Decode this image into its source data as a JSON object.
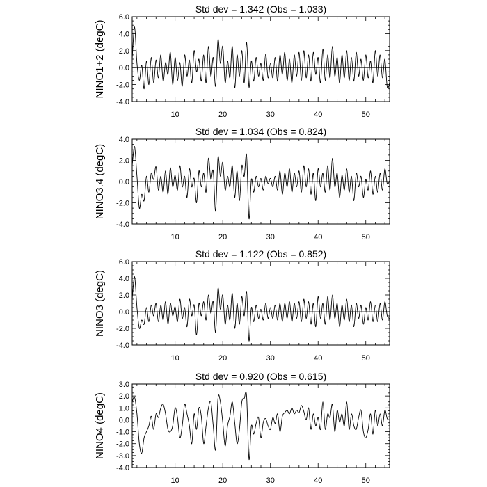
{
  "chart_data": [
    {
      "type": "line",
      "title": "Std dev = 1.342 (Obs = 1.033)",
      "ylabel": "NINO1+2 (degC)",
      "xlabel": "",
      "xlim": [
        1,
        55
      ],
      "ylim": [
        -4,
        6
      ],
      "yticks": [
        "-4.0",
        "-2.0",
        "0.0",
        "2.0",
        "4.0",
        "6.0"
      ],
      "xticks": [
        "10",
        "20",
        "30",
        "40",
        "50"
      ],
      "zero_line": true,
      "series": [
        {
          "x": [
            1.0,
            1.5,
            2.0,
            2.5,
            3.0,
            3.5,
            4.0,
            4.5,
            5.0,
            5.5,
            6.0,
            6.5,
            7.0,
            7.5,
            8.0,
            8.5,
            9.0,
            9.5,
            10.0,
            10.5,
            11.0,
            11.5,
            12.0,
            12.5,
            13.0,
            13.5,
            14.0,
            14.5,
            15.0,
            15.5,
            16.0,
            16.5,
            17.0,
            17.5,
            18.0,
            18.5,
            19.0,
            19.5,
            20.0,
            20.5,
            21.0,
            21.5,
            22.0,
            22.5,
            23.0,
            23.5,
            24.0,
            24.5,
            25.0,
            25.5,
            26.0,
            26.5,
            27.0,
            27.5,
            28.0,
            28.5,
            29.0,
            29.5,
            30.0,
            30.5,
            31.0,
            31.5,
            32.0,
            32.5,
            33.0,
            33.5,
            34.0,
            34.5,
            35.0,
            35.5,
            36.0,
            36.5,
            37.0,
            37.5,
            38.0,
            38.5,
            39.0,
            39.5,
            40.0,
            40.5,
            41.0,
            41.5,
            42.0,
            42.5,
            43.0,
            43.5,
            44.0,
            44.5,
            45.0,
            45.5,
            46.0,
            46.5,
            47.0,
            47.5,
            48.0,
            48.5,
            49.0,
            49.5,
            50.0,
            50.5,
            51.0,
            51.5,
            52.0,
            52.5,
            53.0,
            53.5,
            54.0,
            54.5,
            55.0
          ],
          "y": [
            1.0,
            4.8,
            0.5,
            -1.5,
            0.3,
            -2.5,
            0.8,
            -2.0,
            1.2,
            -1.8,
            0.9,
            -1.2,
            1.5,
            -1.6,
            0.6,
            -0.8,
            1.8,
            -2.0,
            1.2,
            -1.5,
            0.6,
            -2.2,
            1.5,
            -1.0,
            0.9,
            -1.8,
            2.0,
            -0.5,
            1.0,
            -1.6,
            1.5,
            -1.8,
            2.5,
            -1.0,
            1.2,
            -2.2,
            3.3,
            0.5,
            2.5,
            -1.8,
            0.8,
            -1.2,
            2.5,
            -2.4,
            1.5,
            -1.0,
            2.0,
            -1.8,
            3.0,
            -2.3,
            0.8,
            -1.6,
            1.2,
            -1.0,
            0.5,
            -1.5,
            1.6,
            -1.2,
            0.5,
            -1.2,
            1.2,
            -1.6,
            1.5,
            -0.8,
            1.8,
            -1.5,
            1.0,
            -1.8,
            1.5,
            -1.0,
            1.8,
            -1.5,
            2.0,
            -1.2,
            1.5,
            -1.6,
            1.8,
            -0.8,
            1.2,
            -1.8,
            2.2,
            -1.5,
            1.5,
            -1.2,
            2.5,
            -1.0,
            1.2,
            -1.8,
            1.5,
            -1.2,
            2.0,
            -1.5,
            1.2,
            -1.6,
            1.8,
            -1.0,
            1.0,
            -1.5,
            1.5,
            -1.2,
            0.8,
            -1.8,
            2.0,
            -1.0,
            1.5,
            -1.2,
            1.0,
            -2.3,
            -1.8
          ]
        }
      ]
    },
    {
      "type": "line",
      "title": "Std dev = 1.034 (Obs = 0.824)",
      "ylabel": "NINO3.4 (degC)",
      "xlabel": "",
      "xlim": [
        1,
        55
      ],
      "ylim": [
        -4,
        4
      ],
      "yticks": [
        "-4.0",
        "-2.0",
        "0.0",
        "2.0",
        "4.0"
      ],
      "xticks": [
        "10",
        "20",
        "30",
        "40",
        "50"
      ],
      "zero_line": true,
      "series": [
        {
          "x": [
            1.0,
            1.5,
            2.0,
            2.5,
            3.0,
            3.5,
            4.0,
            4.5,
            5.0,
            5.5,
            6.0,
            6.5,
            7.0,
            7.5,
            8.0,
            8.5,
            9.0,
            9.5,
            10.0,
            10.5,
            11.0,
            11.5,
            12.0,
            12.5,
            13.0,
            13.5,
            14.0,
            14.5,
            15.0,
            15.5,
            16.0,
            16.5,
            17.0,
            17.5,
            18.0,
            18.5,
            19.0,
            19.5,
            20.0,
            20.5,
            21.0,
            21.5,
            22.0,
            22.5,
            23.0,
            23.5,
            24.0,
            24.5,
            25.0,
            25.5,
            26.0,
            26.5,
            27.0,
            27.5,
            28.0,
            28.5,
            29.0,
            29.5,
            30.0,
            30.5,
            31.0,
            31.5,
            32.0,
            32.5,
            33.0,
            33.5,
            34.0,
            34.5,
            35.0,
            35.5,
            36.0,
            36.5,
            37.0,
            37.5,
            38.0,
            38.5,
            39.0,
            39.5,
            40.0,
            40.5,
            41.0,
            41.5,
            42.0,
            42.5,
            43.0,
            43.5,
            44.0,
            44.5,
            45.0,
            45.5,
            46.0,
            46.5,
            47.0,
            47.5,
            48.0,
            48.5,
            49.0,
            49.5,
            50.0,
            50.5,
            51.0,
            51.5,
            52.0,
            52.5,
            53.0,
            53.5,
            54.0,
            54.5,
            55.0
          ],
          "y": [
            1.5,
            3.3,
            0.5,
            -2.5,
            -1.2,
            -1.8,
            0.5,
            -1.0,
            0.8,
            0.2,
            1.4,
            -0.8,
            0.5,
            -1.0,
            1.0,
            -1.2,
            1.3,
            -0.5,
            0.6,
            -0.8,
            1.5,
            -0.5,
            0.5,
            -1.5,
            1.2,
            -0.5,
            0.3,
            -2.0,
            1.0,
            -0.5,
            0.8,
            -1.0,
            2.2,
            0.2,
            1.0,
            -2.8,
            2.3,
            0.5,
            1.8,
            -0.8,
            0.5,
            -0.5,
            1.5,
            -1.5,
            1.0,
            -1.8,
            1.5,
            0.5,
            2.5,
            -3.5,
            0.2,
            -1.0,
            0.5,
            -0.5,
            0.3,
            -0.8,
            0.5,
            -0.2,
            0.3,
            -0.5,
            0.5,
            -0.8,
            1.0,
            -1.2,
            0.8,
            -0.5,
            1.2,
            -1.0,
            0.8,
            -0.5,
            1.0,
            -1.0,
            1.5,
            -0.5,
            1.2,
            -1.2,
            0.8,
            -1.8,
            1.2,
            -0.5,
            0.8,
            -1.0,
            1.5,
            -0.8,
            2.2,
            -0.5,
            0.8,
            -1.5,
            0.6,
            -0.8,
            1.2,
            -1.0,
            0.5,
            -1.8,
            0.8,
            -0.5,
            0.5,
            -1.5,
            0.2,
            -0.8,
            1.0,
            -1.2,
            0.5,
            -1.0,
            0.8,
            -0.8,
            1.2,
            -0.2,
            0.1
          ]
        }
      ]
    },
    {
      "type": "line",
      "title": "Std dev = 1.122 (Obs = 0.852)",
      "ylabel": "NINO3 (degC)",
      "xlabel": "",
      "xlim": [
        1,
        55
      ],
      "ylim": [
        -4,
        6
      ],
      "yticks": [
        "-4.0",
        "-2.0",
        "0.0",
        "2.0",
        "4.0",
        "6.0"
      ],
      "xticks": [
        "10",
        "20",
        "30",
        "40",
        "50"
      ],
      "zero_line": true,
      "series": [
        {
          "x": [
            1.0,
            1.5,
            2.0,
            2.5,
            3.0,
            3.5,
            4.0,
            4.5,
            5.0,
            5.5,
            6.0,
            6.5,
            7.0,
            7.5,
            8.0,
            8.5,
            9.0,
            9.5,
            10.0,
            10.5,
            11.0,
            11.5,
            12.0,
            12.5,
            13.0,
            13.5,
            14.0,
            14.5,
            15.0,
            15.5,
            16.0,
            16.5,
            17.0,
            17.5,
            18.0,
            18.5,
            19.0,
            19.5,
            20.0,
            20.5,
            21.0,
            21.5,
            22.0,
            22.5,
            23.0,
            23.5,
            24.0,
            24.5,
            25.0,
            25.5,
            26.0,
            26.5,
            27.0,
            27.5,
            28.0,
            28.5,
            29.0,
            29.5,
            30.0,
            30.5,
            31.0,
            31.5,
            32.0,
            32.5,
            33.0,
            33.5,
            34.0,
            34.5,
            35.0,
            35.5,
            36.0,
            36.5,
            37.0,
            37.5,
            38.0,
            38.5,
            39.0,
            39.5,
            40.0,
            40.5,
            41.0,
            41.5,
            42.0,
            42.5,
            43.0,
            43.5,
            44.0,
            44.5,
            45.0,
            45.5,
            46.0,
            46.5,
            47.0,
            47.5,
            48.0,
            48.5,
            49.0,
            49.5,
            50.0,
            50.5,
            51.0,
            51.5,
            52.0,
            52.5,
            53.0,
            53.5,
            54.0,
            54.5,
            55.0
          ],
          "y": [
            1.5,
            4.2,
            0.5,
            -2.0,
            -1.0,
            -1.5,
            0.5,
            -1.2,
            0.8,
            -0.5,
            1.0,
            -1.2,
            0.8,
            -1.0,
            1.2,
            -1.5,
            1.0,
            -0.5,
            0.6,
            -1.2,
            1.5,
            -0.8,
            0.5,
            -1.8,
            1.5,
            -0.5,
            0.8,
            -2.8,
            1.0,
            -0.5,
            1.2,
            -1.0,
            2.0,
            -0.2,
            1.2,
            -2.5,
            2.8,
            0.3,
            2.0,
            -1.5,
            0.8,
            -1.0,
            2.2,
            -2.0,
            1.0,
            -1.5,
            1.8,
            -0.5,
            2.4,
            -3.5,
            0.5,
            -1.2,
            0.8,
            -0.8,
            0.3,
            -1.0,
            1.0,
            -0.8,
            0.5,
            -0.8,
            0.8,
            -1.0,
            1.0,
            -1.2,
            1.0,
            -0.8,
            1.2,
            -1.2,
            1.0,
            -0.8,
            1.2,
            -1.2,
            1.5,
            -0.8,
            1.2,
            -1.5,
            1.0,
            -1.8,
            1.8,
            -0.8,
            1.0,
            -1.5,
            1.8,
            -1.0,
            2.0,
            -0.8,
            1.0,
            -1.8,
            0.8,
            -1.0,
            1.5,
            -1.2,
            0.8,
            -1.8,
            1.0,
            -0.8,
            0.8,
            -1.5,
            0.5,
            -1.0,
            1.2,
            -1.2,
            0.8,
            -1.2,
            1.0,
            -1.0,
            1.2,
            -0.5,
            -0.8
          ]
        }
      ]
    },
    {
      "type": "line",
      "title": "Std dev = 0.920 (Obs = 0.615)",
      "ylabel": "NINO4 (degC)",
      "xlabel": "",
      "xlim": [
        1,
        55
      ],
      "ylim": [
        -4,
        3
      ],
      "yticks": [
        "-4.0",
        "-3.0",
        "-2.0",
        "-1.0",
        "0.0",
        "1.0",
        "2.0",
        "3.0"
      ],
      "xticks": [
        "10",
        "20",
        "30",
        "40",
        "50"
      ],
      "zero_line": true,
      "series": [
        {
          "x": [
            1.0,
            1.5,
            2.0,
            2.5,
            3.0,
            3.5,
            4.0,
            4.5,
            5.0,
            5.5,
            6.0,
            6.5,
            7.0,
            7.5,
            8.0,
            8.5,
            9.0,
            9.5,
            10.0,
            10.5,
            11.0,
            11.5,
            12.0,
            12.5,
            13.0,
            13.5,
            14.0,
            14.5,
            15.0,
            15.5,
            16.0,
            16.5,
            17.0,
            17.5,
            18.0,
            18.5,
            19.0,
            19.5,
            20.0,
            20.5,
            21.0,
            21.5,
            22.0,
            22.5,
            23.0,
            23.5,
            24.0,
            24.5,
            25.0,
            25.5,
            26.0,
            26.5,
            27.0,
            27.5,
            28.0,
            28.5,
            29.0,
            29.5,
            30.0,
            30.5,
            31.0,
            31.5,
            32.0,
            32.5,
            33.0,
            33.5,
            34.0,
            34.5,
            35.0,
            35.5,
            36.0,
            36.5,
            37.0,
            37.5,
            38.0,
            38.5,
            39.0,
            39.5,
            40.0,
            40.5,
            41.0,
            41.5,
            42.0,
            42.5,
            43.0,
            43.5,
            44.0,
            44.5,
            45.0,
            45.5,
            46.0,
            46.5,
            47.0,
            47.5,
            48.0,
            48.5,
            49.0,
            49.5,
            50.0,
            50.5,
            51.0,
            51.5,
            52.0,
            52.5,
            53.0,
            53.5,
            54.0,
            54.5,
            55.0
          ],
          "y": [
            1.5,
            1.9,
            0.5,
            -2.0,
            -2.8,
            -1.5,
            -1.0,
            -0.5,
            0.3,
            -0.8,
            0.5,
            0.2,
            1.0,
            1.3,
            0.5,
            -0.8,
            -1.0,
            -0.5,
            1.0,
            0.2,
            -1.5,
            -0.5,
            1.3,
            0.5,
            -0.5,
            -2.0,
            0.5,
            -0.8,
            1.0,
            0.3,
            -2.0,
            -0.5,
            1.0,
            1.5,
            -0.5,
            -2.5,
            1.8,
            1.5,
            -0.2,
            -2.2,
            -0.5,
            0.3,
            1.5,
            -0.2,
            -2.0,
            -0.8,
            1.5,
            1.8,
            2.0,
            -3.3,
            -0.5,
            -1.2,
            -0.3,
            0.2,
            -1.5,
            -0.2,
            0.1,
            -0.5,
            -0.8,
            0.2,
            -0.3,
            0.5,
            -1.0,
            0.3,
            0.6,
            0.8,
            0.5,
            1.0,
            0.5,
            0.8,
            0.6,
            1.2,
            0.7,
            0.0,
            1.0,
            -0.8,
            0.5,
            -0.5,
            0.2,
            -0.8,
            1.5,
            -0.8,
            0.5,
            0.2,
            1.3,
            -1.0,
            0.8,
            -0.2,
            0.5,
            -0.5,
            1.5,
            -0.8,
            0.5,
            -0.5,
            -0.8,
            0.2,
            0.8,
            -1.0,
            -1.5,
            -0.8,
            0.5,
            -1.2,
            0.8,
            -0.5,
            0.5,
            -0.5,
            0.8,
            0.1,
            0.0
          ]
        }
      ]
    }
  ]
}
